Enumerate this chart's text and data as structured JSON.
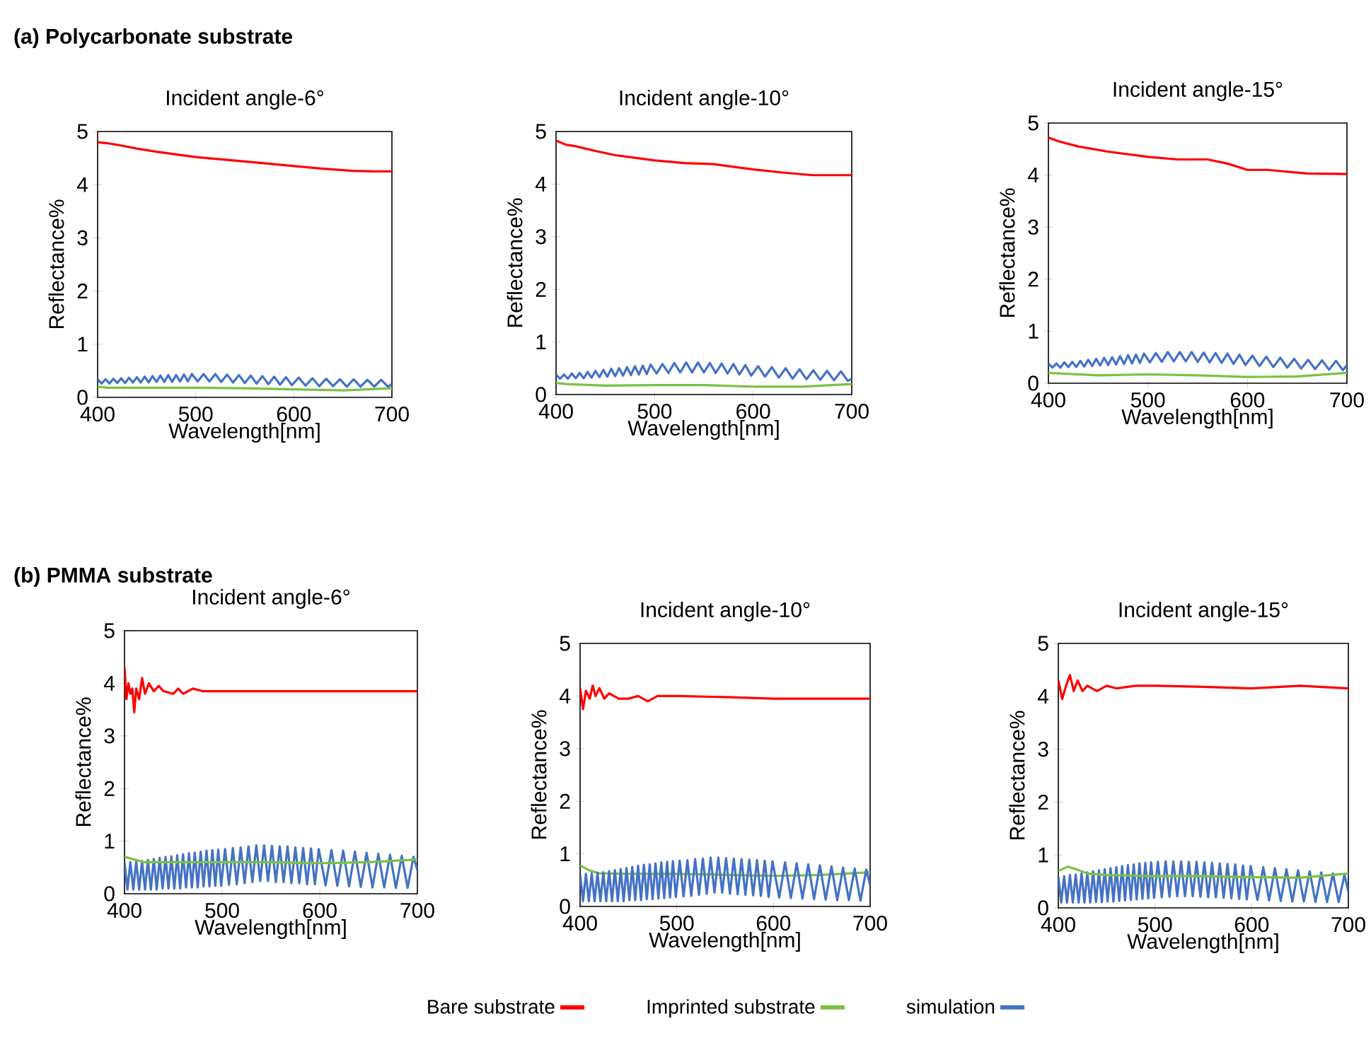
{
  "chart_data": [
    {
      "type": "line",
      "title": "Incident angle-6°",
      "annotations": [
        "(a) Polycarbonate substrate"
      ],
      "xlabel": "Wavelength[nm]",
      "ylabel": "Reflectance%",
      "xlim": [
        400,
        700
      ],
      "ylim": [
        0,
        5
      ],
      "xticks": [
        400,
        500,
        600,
        700
      ],
      "yticks": [
        0,
        1,
        2,
        3,
        4,
        5
      ],
      "series": [
        {
          "color": "#ff0000",
          "x": [
            400,
            410,
            420,
            440,
            460,
            480,
            500,
            530,
            560,
            600,
            630,
            660,
            680,
            700
          ],
          "values": [
            4.8,
            4.78,
            4.75,
            4.68,
            4.62,
            4.57,
            4.52,
            4.47,
            4.42,
            4.35,
            4.3,
            4.26,
            4.25,
            4.25
          ]
        },
        {
          "color": "#7ac143",
          "x": [
            400,
            410,
            450,
            500,
            550,
            600,
            650,
            700
          ],
          "values": [
            0.2,
            0.18,
            0.18,
            0.18,
            0.17,
            0.15,
            0.13,
            0.17
          ]
        },
        {
          "color": "#4472c4",
          "x": [
            400,
            404,
            408,
            412,
            416,
            420,
            424,
            428,
            432,
            436,
            440,
            444,
            448,
            452,
            456,
            460,
            464,
            468,
            472,
            476,
            480,
            484,
            488,
            492,
            496,
            502,
            508,
            514,
            520,
            526,
            532,
            538,
            544,
            550,
            556,
            562,
            568,
            574,
            580,
            586,
            592,
            598,
            605,
            612,
            619,
            626,
            633,
            640,
            647,
            654,
            661,
            668,
            675,
            682,
            689,
            696,
            700
          ],
          "values": [
            0.34,
            0.26,
            0.34,
            0.26,
            0.35,
            0.27,
            0.36,
            0.27,
            0.37,
            0.28,
            0.38,
            0.28,
            0.39,
            0.28,
            0.4,
            0.29,
            0.41,
            0.29,
            0.42,
            0.29,
            0.42,
            0.3,
            0.43,
            0.3,
            0.44,
            0.3,
            0.44,
            0.3,
            0.44,
            0.29,
            0.43,
            0.28,
            0.42,
            0.27,
            0.41,
            0.26,
            0.4,
            0.25,
            0.39,
            0.24,
            0.38,
            0.23,
            0.37,
            0.22,
            0.36,
            0.21,
            0.35,
            0.21,
            0.34,
            0.2,
            0.34,
            0.2,
            0.33,
            0.2,
            0.33,
            0.2,
            0.25
          ]
        }
      ]
    },
    {
      "type": "line",
      "title": "Incident angle-10°",
      "xlabel": "Wavelength[nm]",
      "ylabel": "Reflectance%",
      "xlim": [
        400,
        700
      ],
      "ylim": [
        0,
        5
      ],
      "xticks": [
        400,
        500,
        600,
        700
      ],
      "yticks": [
        0,
        1,
        2,
        3,
        4,
        5
      ],
      "series": [
        {
          "color": "#ff0000",
          "x": [
            400,
            410,
            420,
            440,
            460,
            480,
            500,
            530,
            560,
            600,
            630,
            660,
            700
          ],
          "values": [
            4.83,
            4.75,
            4.72,
            4.63,
            4.55,
            4.5,
            4.45,
            4.4,
            4.38,
            4.28,
            4.22,
            4.17,
            4.17
          ]
        },
        {
          "color": "#7ac143",
          "x": [
            400,
            410,
            450,
            500,
            550,
            600,
            650,
            700
          ],
          "values": [
            0.22,
            0.2,
            0.17,
            0.18,
            0.18,
            0.15,
            0.15,
            0.2
          ]
        },
        {
          "color": "#4472c4",
          "x": [
            400,
            404,
            408,
            412,
            416,
            420,
            424,
            428,
            432,
            436,
            440,
            444,
            448,
            452,
            456,
            460,
            464,
            468,
            472,
            476,
            480,
            484,
            488,
            492,
            496,
            502,
            508,
            514,
            520,
            526,
            532,
            538,
            544,
            550,
            556,
            562,
            568,
            574,
            580,
            586,
            592,
            598,
            605,
            612,
            619,
            626,
            633,
            640,
            647,
            654,
            661,
            668,
            675,
            682,
            689,
            696,
            700
          ],
          "values": [
            0.38,
            0.3,
            0.38,
            0.3,
            0.4,
            0.31,
            0.41,
            0.31,
            0.43,
            0.32,
            0.45,
            0.33,
            0.47,
            0.34,
            0.49,
            0.35,
            0.5,
            0.36,
            0.52,
            0.37,
            0.54,
            0.38,
            0.55,
            0.39,
            0.57,
            0.4,
            0.58,
            0.41,
            0.6,
            0.42,
            0.61,
            0.42,
            0.61,
            0.42,
            0.6,
            0.41,
            0.59,
            0.4,
            0.58,
            0.38,
            0.56,
            0.36,
            0.54,
            0.34,
            0.52,
            0.32,
            0.5,
            0.3,
            0.48,
            0.29,
            0.46,
            0.28,
            0.45,
            0.27,
            0.44,
            0.26,
            0.3
          ]
        }
      ]
    },
    {
      "type": "line",
      "title": "Incident angle-15°",
      "xlabel": "Wavelength[nm]",
      "ylabel": "Reflectance%",
      "xlim": [
        400,
        700
      ],
      "ylim": [
        0,
        5
      ],
      "xticks": [
        400,
        500,
        600,
        700
      ],
      "yticks": [
        0,
        1,
        2,
        3,
        4,
        5
      ],
      "series": [
        {
          "color": "#ff0000",
          "x": [
            400,
            410,
            430,
            460,
            500,
            530,
            560,
            580,
            600,
            620,
            660,
            700
          ],
          "values": [
            4.72,
            4.65,
            4.55,
            4.45,
            4.35,
            4.3,
            4.3,
            4.22,
            4.1,
            4.1,
            4.03,
            4.02
          ]
        },
        {
          "color": "#7ac143",
          "x": [
            400,
            420,
            450,
            500,
            550,
            600,
            650,
            700
          ],
          "values": [
            0.2,
            0.18,
            0.15,
            0.17,
            0.15,
            0.12,
            0.13,
            0.2
          ]
        },
        {
          "color": "#4472c4",
          "x": [
            400,
            404,
            408,
            412,
            416,
            420,
            424,
            428,
            432,
            436,
            440,
            444,
            448,
            452,
            456,
            460,
            464,
            468,
            472,
            476,
            480,
            484,
            488,
            492,
            496,
            502,
            508,
            514,
            520,
            526,
            532,
            538,
            544,
            550,
            556,
            562,
            568,
            574,
            580,
            586,
            592,
            598,
            605,
            612,
            619,
            626,
            633,
            640,
            647,
            654,
            661,
            668,
            675,
            682,
            689,
            696,
            700
          ],
          "values": [
            0.38,
            0.3,
            0.38,
            0.3,
            0.4,
            0.31,
            0.41,
            0.31,
            0.43,
            0.32,
            0.45,
            0.33,
            0.47,
            0.34,
            0.49,
            0.35,
            0.5,
            0.36,
            0.52,
            0.37,
            0.54,
            0.38,
            0.55,
            0.39,
            0.57,
            0.4,
            0.58,
            0.41,
            0.6,
            0.42,
            0.6,
            0.42,
            0.6,
            0.41,
            0.59,
            0.4,
            0.58,
            0.39,
            0.57,
            0.37,
            0.55,
            0.35,
            0.53,
            0.33,
            0.51,
            0.31,
            0.49,
            0.3,
            0.47,
            0.28,
            0.45,
            0.27,
            0.44,
            0.26,
            0.43,
            0.25,
            0.35
          ]
        }
      ]
    },
    {
      "type": "line",
      "title": "Incident angle-6°",
      "annotations": [
        "(b) PMMA substrate"
      ],
      "xlabel": "Wavelength[nm]",
      "ylabel": "Reflectance%",
      "xlim": [
        400,
        700
      ],
      "ylim": [
        0,
        5
      ],
      "xticks": [
        400,
        500,
        600,
        700
      ],
      "yticks": [
        0,
        1,
        2,
        3,
        4,
        5
      ],
      "series": [
        {
          "color": "#ff0000",
          "x": [
            400,
            402,
            404,
            406,
            408,
            410,
            412,
            415,
            418,
            421,
            425,
            430,
            435,
            440,
            450,
            455,
            460,
            470,
            480,
            500,
            550,
            600,
            650,
            700
          ],
          "values": [
            4.3,
            3.7,
            4.0,
            3.8,
            3.9,
            3.45,
            3.9,
            3.7,
            4.1,
            3.8,
            4.0,
            3.85,
            3.95,
            3.85,
            3.8,
            3.9,
            3.8,
            3.9,
            3.85,
            3.85,
            3.85,
            3.85,
            3.85,
            3.85
          ]
        },
        {
          "color": "#4472c4",
          "x": [
            400,
            403,
            406,
            409,
            412,
            415,
            418,
            421,
            424,
            427,
            430,
            433,
            436,
            439,
            442,
            445,
            448,
            451,
            454,
            457,
            460,
            463,
            466,
            469,
            472,
            475,
            478,
            481,
            484,
            487,
            490,
            493,
            496,
            499,
            503,
            507,
            511,
            515,
            519,
            523,
            527,
            531,
            535,
            539,
            543,
            547,
            551,
            555,
            559,
            563,
            567,
            571,
            575,
            579,
            583,
            587,
            591,
            595,
            599,
            606,
            612,
            618,
            624,
            630,
            636,
            642,
            648,
            654,
            660,
            666,
            672,
            678,
            684,
            690,
            696,
            700
          ],
          "values": [
            0.6,
            0.08,
            0.6,
            0.08,
            0.62,
            0.08,
            0.62,
            0.08,
            0.64,
            0.08,
            0.66,
            0.08,
            0.68,
            0.1,
            0.7,
            0.1,
            0.71,
            0.1,
            0.73,
            0.1,
            0.75,
            0.12,
            0.77,
            0.12,
            0.78,
            0.12,
            0.8,
            0.14,
            0.82,
            0.14,
            0.83,
            0.15,
            0.84,
            0.15,
            0.85,
            0.17,
            0.87,
            0.18,
            0.88,
            0.2,
            0.9,
            0.22,
            0.92,
            0.24,
            0.92,
            0.24,
            0.91,
            0.22,
            0.9,
            0.22,
            0.9,
            0.2,
            0.88,
            0.2,
            0.87,
            0.18,
            0.86,
            0.18,
            0.85,
            0.16,
            0.83,
            0.15,
            0.82,
            0.14,
            0.8,
            0.13,
            0.78,
            0.12,
            0.76,
            0.12,
            0.74,
            0.11,
            0.72,
            0.11,
            0.7,
            0.45
          ]
        },
        {
          "color": "#7ac143",
          "x": [
            400,
            410,
            420,
            450,
            500,
            550,
            600,
            650,
            700
          ],
          "values": [
            0.7,
            0.65,
            0.6,
            0.6,
            0.6,
            0.6,
            0.58,
            0.6,
            0.65
          ]
        }
      ]
    },
    {
      "type": "line",
      "title": "Incident angle-10°",
      "xlabel": "Wavelength[nm]",
      "ylabel": "Reflectance%",
      "xlim": [
        400,
        700
      ],
      "ylim": [
        0,
        5
      ],
      "xticks": [
        400,
        500,
        600,
        700
      ],
      "yticks": [
        0,
        1,
        2,
        3,
        4,
        5
      ],
      "legend": "bottom",
      "series": [
        {
          "name": "Bare substrate",
          "color": "#ff0000",
          "x": [
            400,
            403,
            406,
            410,
            413,
            416,
            420,
            425,
            430,
            440,
            450,
            460,
            470,
            480,
            500,
            550,
            600,
            650,
            700
          ],
          "values": [
            4.15,
            3.75,
            4.1,
            3.95,
            4.2,
            4.0,
            4.15,
            3.95,
            4.05,
            3.95,
            3.95,
            4.0,
            3.9,
            4.0,
            4.0,
            3.98,
            3.95,
            3.95,
            3.95
          ]
        },
        {
          "name": "Imprinted substrate",
          "color": "#7ac143",
          "x": [
            400,
            410,
            420,
            450,
            500,
            550,
            600,
            650,
            700
          ],
          "values": [
            0.78,
            0.68,
            0.63,
            0.62,
            0.62,
            0.6,
            0.58,
            0.6,
            0.65
          ]
        },
        {
          "name": "simulation",
          "color": "#4472c4",
          "x": [
            400,
            403,
            406,
            409,
            412,
            415,
            418,
            421,
            424,
            427,
            430,
            433,
            436,
            439,
            442,
            445,
            448,
            451,
            454,
            457,
            460,
            463,
            466,
            469,
            472,
            475,
            478,
            481,
            484,
            487,
            490,
            493,
            496,
            499,
            503,
            507,
            511,
            515,
            519,
            523,
            527,
            531,
            535,
            539,
            543,
            547,
            551,
            555,
            559,
            563,
            567,
            571,
            575,
            579,
            583,
            587,
            591,
            595,
            599,
            606,
            612,
            618,
            624,
            630,
            636,
            642,
            648,
            654,
            660,
            666,
            672,
            678,
            684,
            690,
            696,
            700
          ],
          "values": [
            0.62,
            0.1,
            0.62,
            0.1,
            0.63,
            0.1,
            0.64,
            0.1,
            0.65,
            0.1,
            0.67,
            0.1,
            0.69,
            0.1,
            0.71,
            0.1,
            0.73,
            0.12,
            0.75,
            0.12,
            0.77,
            0.12,
            0.79,
            0.14,
            0.8,
            0.14,
            0.82,
            0.15,
            0.84,
            0.16,
            0.85,
            0.17,
            0.86,
            0.18,
            0.87,
            0.19,
            0.88,
            0.2,
            0.9,
            0.22,
            0.91,
            0.24,
            0.93,
            0.26,
            0.93,
            0.26,
            0.92,
            0.24,
            0.91,
            0.23,
            0.9,
            0.22,
            0.89,
            0.21,
            0.88,
            0.2,
            0.87,
            0.18,
            0.86,
            0.17,
            0.84,
            0.16,
            0.82,
            0.15,
            0.8,
            0.14,
            0.78,
            0.13,
            0.76,
            0.12,
            0.74,
            0.12,
            0.72,
            0.11,
            0.7,
            0.4
          ]
        }
      ]
    },
    {
      "type": "line",
      "title": "Incident angle-15°",
      "xlabel": "Wavelength[nm]",
      "ylabel": "Reflectance%",
      "xlim": [
        400,
        700
      ],
      "ylim": [
        0,
        5
      ],
      "xticks": [
        400,
        500,
        600,
        700
      ],
      "yticks": [
        0,
        1,
        2,
        3,
        4,
        5
      ],
      "series": [
        {
          "color": "#ff0000",
          "x": [
            400,
            404,
            408,
            412,
            416,
            420,
            425,
            430,
            440,
            450,
            460,
            480,
            500,
            550,
            600,
            650,
            700
          ],
          "values": [
            4.3,
            3.95,
            4.2,
            4.4,
            4.1,
            4.3,
            4.1,
            4.2,
            4.1,
            4.2,
            4.15,
            4.2,
            4.2,
            4.18,
            4.15,
            4.2,
            4.15
          ]
        },
        {
          "color": "#4472c4",
          "x": [
            400,
            403,
            406,
            409,
            412,
            415,
            418,
            421,
            424,
            427,
            430,
            433,
            436,
            439,
            442,
            445,
            448,
            451,
            454,
            457,
            460,
            463,
            466,
            469,
            472,
            475,
            478,
            481,
            484,
            487,
            490,
            493,
            496,
            499,
            503,
            507,
            511,
            515,
            519,
            523,
            527,
            531,
            535,
            539,
            543,
            547,
            551,
            555,
            559,
            563,
            567,
            571,
            575,
            579,
            583,
            587,
            591,
            595,
            599,
            606,
            612,
            618,
            624,
            630,
            636,
            642,
            648,
            654,
            660,
            666,
            672,
            678,
            684,
            690,
            696,
            700
          ],
          "values": [
            0.6,
            0.1,
            0.6,
            0.1,
            0.62,
            0.1,
            0.63,
            0.1,
            0.65,
            0.1,
            0.67,
            0.1,
            0.69,
            0.11,
            0.71,
            0.11,
            0.73,
            0.12,
            0.75,
            0.12,
            0.77,
            0.13,
            0.79,
            0.14,
            0.81,
            0.15,
            0.82,
            0.16,
            0.84,
            0.17,
            0.85,
            0.18,
            0.86,
            0.19,
            0.87,
            0.2,
            0.88,
            0.21,
            0.88,
            0.22,
            0.88,
            0.22,
            0.87,
            0.22,
            0.87,
            0.21,
            0.86,
            0.2,
            0.85,
            0.2,
            0.84,
            0.19,
            0.83,
            0.18,
            0.82,
            0.17,
            0.8,
            0.16,
            0.79,
            0.15,
            0.77,
            0.14,
            0.75,
            0.13,
            0.73,
            0.12,
            0.71,
            0.12,
            0.69,
            0.11,
            0.67,
            0.11,
            0.65,
            0.11,
            0.63,
            0.3
          ]
        },
        {
          "color": "#7ac143",
          "x": [
            400,
            410,
            420,
            430,
            450,
            500,
            550,
            600,
            650,
            700
          ],
          "values": [
            0.7,
            0.78,
            0.72,
            0.65,
            0.62,
            0.6,
            0.6,
            0.58,
            0.57,
            0.65
          ]
        }
      ]
    }
  ]
}
